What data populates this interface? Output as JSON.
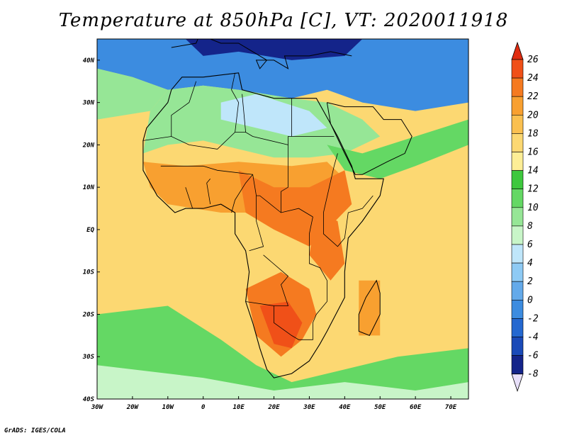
{
  "title": "Temperature at 850hPa [C], VT: 2020011918",
  "credit": "GrADS: IGES/COLA",
  "map": {
    "projection": "latlon",
    "lon_range": [
      -30,
      75
    ],
    "lat_range": [
      -40,
      45
    ],
    "lat_ticks": [
      {
        "value": 40,
        "label": "40N"
      },
      {
        "value": 30,
        "label": "30N"
      },
      {
        "value": 20,
        "label": "20N"
      },
      {
        "value": 10,
        "label": "10N"
      },
      {
        "value": 0,
        "label": "EQ"
      },
      {
        "value": -10,
        "label": "10S"
      },
      {
        "value": -20,
        "label": "20S"
      },
      {
        "value": -30,
        "label": "30S"
      },
      {
        "value": -40,
        "label": "40S"
      }
    ],
    "lon_ticks": [
      {
        "value": -30,
        "label": "30W"
      },
      {
        "value": -20,
        "label": "20W"
      },
      {
        "value": -10,
        "label": "10W"
      },
      {
        "value": 0,
        "label": "0"
      },
      {
        "value": 10,
        "label": "10E"
      },
      {
        "value": 20,
        "label": "20E"
      },
      {
        "value": 30,
        "label": "30E"
      },
      {
        "value": 40,
        "label": "40E"
      },
      {
        "value": 50,
        "label": "50E"
      },
      {
        "value": 60,
        "label": "60E"
      },
      {
        "value": 70,
        "label": "70E"
      }
    ],
    "temperature_regions": [
      {
        "name": "ocean-background",
        "temp": 18,
        "points": [
          [
            -30,
            45
          ],
          [
            75,
            45
          ],
          [
            75,
            -40
          ],
          [
            -30,
            -40
          ]
        ]
      },
      {
        "name": "mediterranean-europe-cold",
        "temp": 0,
        "points": [
          [
            -30,
            45
          ],
          [
            75,
            45
          ],
          [
            75,
            30
          ],
          [
            60,
            28
          ],
          [
            45,
            30
          ],
          [
            35,
            33
          ],
          [
            25,
            31
          ],
          [
            10,
            33
          ],
          [
            0,
            34
          ],
          [
            -10,
            33
          ],
          [
            -20,
            36
          ],
          [
            -30,
            38
          ]
        ]
      },
      {
        "name": "europe-very-cold",
        "temp": -6,
        "points": [
          [
            -5,
            45
          ],
          [
            45,
            45
          ],
          [
            40,
            41
          ],
          [
            25,
            40
          ],
          [
            10,
            42
          ],
          [
            0,
            41
          ]
        ]
      },
      {
        "name": "north-atlantic-cool",
        "temp": 10,
        "points": [
          [
            -30,
            38
          ],
          [
            -20,
            36
          ],
          [
            -10,
            33
          ],
          [
            -15,
            28
          ],
          [
            -30,
            26
          ]
        ]
      },
      {
        "name": "sahara-mild",
        "temp": 10,
        "points": [
          [
            -15,
            28
          ],
          [
            -10,
            33
          ],
          [
            0,
            34
          ],
          [
            10,
            33
          ],
          [
            25,
            31
          ],
          [
            35,
            30
          ],
          [
            45,
            26
          ],
          [
            50,
            22
          ],
          [
            40,
            18
          ],
          [
            30,
            17
          ],
          [
            20,
            17
          ],
          [
            10,
            19
          ],
          [
            0,
            21
          ],
          [
            -10,
            20
          ],
          [
            -17,
            18
          ]
        ]
      },
      {
        "name": "central-sahara-cool",
        "temp": 6,
        "points": [
          [
            5,
            30
          ],
          [
            15,
            32
          ],
          [
            30,
            28
          ],
          [
            35,
            24
          ],
          [
            25,
            22
          ],
          [
            15,
            24
          ],
          [
            5,
            26
          ]
        ]
      },
      {
        "name": "arabia-cool",
        "temp": 12,
        "points": [
          [
            35,
            20
          ],
          [
            45,
            18
          ],
          [
            60,
            22
          ],
          [
            75,
            26
          ],
          [
            75,
            20
          ],
          [
            60,
            15
          ],
          [
            50,
            12
          ],
          [
            40,
            14
          ]
        ]
      },
      {
        "name": "sahel-warm",
        "temp": 22,
        "points": [
          [
            -17,
            16
          ],
          [
            -5,
            15
          ],
          [
            10,
            16
          ],
          [
            25,
            15
          ],
          [
            35,
            16
          ],
          [
            40,
            12
          ],
          [
            35,
            6
          ],
          [
            20,
            4
          ],
          [
            5,
            4
          ],
          [
            -10,
            6
          ],
          [
            -15,
            10
          ]
        ]
      },
      {
        "name": "central-africa-hot",
        "temp": 24,
        "points": [
          [
            10,
            14
          ],
          [
            20,
            10
          ],
          [
            30,
            10
          ],
          [
            40,
            14
          ],
          [
            42,
            6
          ],
          [
            35,
            0
          ],
          [
            30,
            -4
          ],
          [
            20,
            0
          ],
          [
            12,
            4
          ]
        ]
      },
      {
        "name": "east-africa-hot",
        "temp": 24,
        "points": [
          [
            32,
            4
          ],
          [
            38,
            2
          ],
          [
            40,
            -8
          ],
          [
            36,
            -12
          ],
          [
            30,
            -6
          ]
        ]
      },
      {
        "name": "southern-africa-hot",
        "temp": 24,
        "points": [
          [
            12,
            -14
          ],
          [
            22,
            -10
          ],
          [
            30,
            -14
          ],
          [
            32,
            -20
          ],
          [
            28,
            -26
          ],
          [
            22,
            -30
          ],
          [
            15,
            -25
          ]
        ]
      },
      {
        "name": "kalahari-very-hot",
        "temp": 26,
        "points": [
          [
            16,
            -18
          ],
          [
            24,
            -17
          ],
          [
            28,
            -22
          ],
          [
            25,
            -28
          ],
          [
            20,
            -27
          ]
        ]
      },
      {
        "name": "south-atlantic-cool",
        "temp": 12,
        "points": [
          [
            -30,
            -20
          ],
          [
            -10,
            -18
          ],
          [
            5,
            -26
          ],
          [
            15,
            -32
          ],
          [
            25,
            -36
          ],
          [
            40,
            -33
          ],
          [
            55,
            -30
          ],
          [
            75,
            -28
          ],
          [
            75,
            -40
          ],
          [
            -30,
            -40
          ]
        ]
      },
      {
        "name": "south-ocean-cold",
        "temp": 8,
        "points": [
          [
            -30,
            -32
          ],
          [
            0,
            -35
          ],
          [
            20,
            -38
          ],
          [
            40,
            -36
          ],
          [
            60,
            -38
          ],
          [
            75,
            -36
          ],
          [
            75,
            -40
          ],
          [
            -30,
            -40
          ]
        ]
      },
      {
        "name": "madagascar-warm",
        "temp": 22,
        "points": [
          [
            44,
            -12
          ],
          [
            50,
            -12
          ],
          [
            50,
            -25
          ],
          [
            44,
            -25
          ]
        ]
      }
    ],
    "coastline": [
      [
        -17,
        21
      ],
      [
        -16,
        24
      ],
      [
        -13,
        27
      ],
      [
        -10,
        30
      ],
      [
        -9,
        33
      ],
      [
        -6,
        36
      ],
      [
        0,
        36
      ],
      [
        10,
        37
      ],
      [
        11,
        33
      ],
      [
        20,
        31
      ],
      [
        30,
        31
      ],
      [
        32,
        31
      ],
      [
        34,
        28
      ],
      [
        38,
        22
      ],
      [
        42,
        15
      ],
      [
        43,
        12
      ],
      [
        51,
        12
      ],
      [
        50,
        8
      ],
      [
        45,
        2
      ],
      [
        41,
        -2
      ],
      [
        40,
        -10
      ],
      [
        40,
        -16
      ],
      [
        35,
        -24
      ],
      [
        33,
        -27
      ],
      [
        30,
        -31
      ],
      [
        25,
        -34
      ],
      [
        20,
        -35
      ],
      [
        18,
        -33
      ],
      [
        16,
        -28
      ],
      [
        14,
        -22
      ],
      [
        12,
        -17
      ],
      [
        13,
        -10
      ],
      [
        12,
        -5
      ],
      [
        9,
        -1
      ],
      [
        9,
        4
      ],
      [
        5,
        6
      ],
      [
        0,
        5
      ],
      [
        -5,
        5
      ],
      [
        -8,
        4
      ],
      [
        -13,
        8
      ],
      [
        -15,
        11
      ],
      [
        -17,
        14
      ],
      [
        -17,
        21
      ]
    ],
    "madagascar": [
      [
        49,
        -12
      ],
      [
        50,
        -15
      ],
      [
        50,
        -20
      ],
      [
        47,
        -25
      ],
      [
        44,
        -24
      ],
      [
        44,
        -20
      ],
      [
        46,
        -16
      ]
    ],
    "arabia": [
      [
        35,
        30
      ],
      [
        40,
        29
      ],
      [
        48,
        29
      ],
      [
        51,
        26
      ],
      [
        56,
        26
      ],
      [
        59,
        22
      ],
      [
        57,
        18
      ],
      [
        52,
        16
      ],
      [
        45,
        13
      ],
      [
        43,
        13
      ],
      [
        40,
        18
      ],
      [
        36,
        25
      ],
      [
        35,
        30
      ]
    ],
    "europe_coast": [
      [
        -9,
        43
      ],
      [
        -2,
        44
      ],
      [
        -1,
        46
      ],
      [
        5,
        44
      ],
      [
        10,
        44
      ],
      [
        14,
        42
      ],
      [
        18,
        40
      ],
      [
        16,
        38
      ],
      [
        15,
        40
      ],
      [
        20,
        40
      ],
      [
        24,
        38
      ],
      [
        23,
        41
      ],
      [
        27,
        41
      ],
      [
        30,
        41
      ],
      [
        36,
        42
      ],
      [
        42,
        41
      ]
    ],
    "borders": [
      [
        [
          -17,
          21
        ],
        [
          -9,
          22
        ],
        [
          -4,
          20
        ],
        [
          4,
          19
        ],
        [
          9,
          23
        ],
        [
          12,
          23
        ],
        [
          14,
          22
        ],
        [
          24,
          20
        ],
        [
          24,
          22
        ],
        [
          25,
          22
        ],
        [
          37,
          22
        ]
      ],
      [
        [
          -9,
          22
        ],
        [
          -9,
          27
        ],
        [
          -4,
          30
        ],
        [
          -2,
          35
        ]
      ],
      [
        [
          9,
          23
        ],
        [
          10,
          30
        ],
        [
          8,
          33
        ],
        [
          9,
          37
        ]
      ],
      [
        [
          12,
          23
        ],
        [
          11,
          32
        ]
      ],
      [
        [
          25,
          31
        ],
        [
          25,
          22
        ]
      ],
      [
        [
          -12,
          15
        ],
        [
          -5,
          15
        ],
        [
          0,
          15
        ],
        [
          4,
          14
        ],
        [
          14,
          13
        ],
        [
          15,
          8
        ],
        [
          16,
          8
        ],
        [
          22,
          4
        ],
        [
          27,
          5
        ],
        [
          31,
          3
        ]
      ],
      [
        [
          24,
          20
        ],
        [
          24,
          10
        ],
        [
          22,
          9
        ],
        [
          22,
          4
        ]
      ],
      [
        [
          15,
          8
        ],
        [
          15,
          2
        ],
        [
          17,
          -4
        ],
        [
          13,
          -5
        ]
      ],
      [
        [
          31,
          3
        ],
        [
          30,
          -1
        ],
        [
          30,
          -8
        ],
        [
          33,
          -9
        ],
        [
          35,
          -12
        ],
        [
          35,
          -17
        ],
        [
          32,
          -20
        ],
        [
          31,
          -22
        ],
        [
          31,
          -26
        ],
        [
          27,
          -26
        ],
        [
          25,
          -25
        ],
        [
          20,
          -22
        ],
        [
          20,
          -18
        ],
        [
          24,
          -18
        ],
        [
          22,
          -13
        ],
        [
          24,
          -11
        ],
        [
          17,
          -6
        ]
      ],
      [
        [
          20,
          -18
        ],
        [
          12,
          -17
        ]
      ],
      [
        [
          34,
          4
        ],
        [
          34,
          -1
        ],
        [
          38,
          -4
        ],
        [
          40,
          -2
        ],
        [
          41,
          4
        ],
        [
          45,
          5
        ],
        [
          48,
          8
        ]
      ],
      [
        [
          34,
          4
        ],
        [
          37,
          15
        ],
        [
          38,
          18
        ]
      ],
      [
        [
          -5,
          10
        ],
        [
          -3,
          5
        ]
      ],
      [
        [
          2,
          6
        ],
        [
          1,
          11
        ],
        [
          2,
          12
        ]
      ],
      [
        [
          8,
          4
        ],
        [
          9,
          7
        ],
        [
          12,
          11
        ],
        [
          14,
          13
        ]
      ]
    ]
  },
  "colorbar": {
    "levels": [
      26,
      24,
      22,
      20,
      18,
      16,
      14,
      12,
      10,
      8,
      6,
      4,
      2,
      0,
      -2,
      -4,
      -6,
      -8
    ],
    "labels": [
      "26",
      "24",
      "22",
      "20",
      "18",
      "16",
      "14",
      "12",
      "10",
      "8",
      "6",
      "4",
      "2",
      "0",
      "-2",
      "-4",
      "-6",
      "-8"
    ],
    "colors": [
      "#f05018",
      "#f57a20",
      "#f8a030",
      "#fac050",
      "#fcd872",
      "#fdee96",
      "#3ec83e",
      "#64d864",
      "#96e696",
      "#c8f5c8",
      "#bfe6fa",
      "#8ecaf4",
      "#64aaea",
      "#3c8ce0",
      "#2468d0",
      "#1a4ab8",
      "#14248a",
      "#2a28b0"
    ],
    "top_color": "#e02c10",
    "bottom_color": "#e8e0fa"
  }
}
